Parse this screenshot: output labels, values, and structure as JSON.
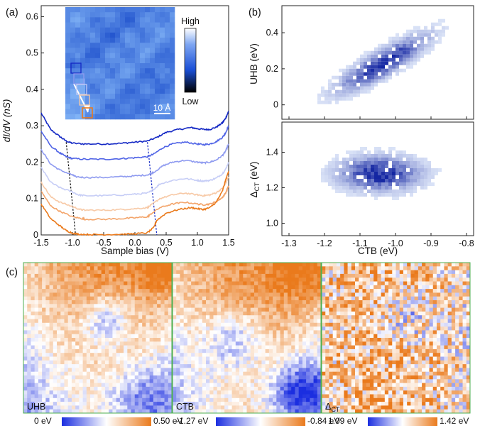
{
  "panels": {
    "a": "(a)",
    "b": "(b)",
    "c": "(c)"
  },
  "colors": {
    "blue_dark": "#1327c4",
    "blue_mid": "#5c6ff2",
    "blue_light": "#b9c2f6",
    "orange_light": "#f7c6a2",
    "orange_mid": "#f2a064",
    "orange_dark": "#ea7a1c",
    "map_green_frame": "#4caf50",
    "stm_blue": "#2b6fe3"
  },
  "chart_data": [
    {
      "id": "a",
      "type": "line",
      "xlabel": "Sample bias (V)",
      "ylabel": "dI/dV (nS)",
      "xlim": [
        -1.5,
        1.5
      ],
      "ylim": [
        0,
        0.63
      ],
      "xticks": [
        "-1.5",
        "-1.0",
        "-0.5",
        "0.0",
        "0.5",
        "1.0",
        "1.5"
      ],
      "yticks": [
        "0",
        "0.1",
        "0.2",
        "0.3",
        "0.4",
        "0.5",
        "0.6"
      ],
      "series": [
        {
          "color": "#1327c4",
          "offset": 0.24,
          "x": [
            -1.5,
            -1.35,
            -1.2,
            -1.1,
            -1.0,
            -0.8,
            -0.5,
            -0.2,
            0.0,
            0.2,
            0.35,
            0.5,
            0.7,
            0.9,
            1.0,
            1.1,
            1.2,
            1.3,
            1.4,
            1.45,
            1.5
          ],
          "y": [
            0.095,
            0.05,
            0.03,
            0.018,
            0.012,
            0.01,
            0.01,
            0.012,
            0.015,
            0.018,
            0.028,
            0.042,
            0.05,
            0.055,
            0.052,
            0.05,
            0.05,
            0.056,
            0.068,
            0.08,
            0.1
          ]
        },
        {
          "color": "#4f63e6",
          "offset": 0.2,
          "x": [
            -1.5,
            -1.35,
            -1.2,
            -1.1,
            -1.0,
            -0.8,
            -0.5,
            -0.2,
            0.0,
            0.2,
            0.3,
            0.45,
            0.6,
            0.8,
            1.0,
            1.1,
            1.2,
            1.3,
            1.4,
            1.45,
            1.5
          ],
          "y": [
            0.085,
            0.045,
            0.025,
            0.015,
            0.01,
            0.008,
            0.008,
            0.01,
            0.012,
            0.015,
            0.022,
            0.04,
            0.05,
            0.055,
            0.05,
            0.048,
            0.05,
            0.056,
            0.068,
            0.08,
            0.1
          ]
        },
        {
          "color": "#8f9bf0",
          "offset": 0.15,
          "x": [
            -1.5,
            -1.35,
            -1.2,
            -1.0,
            -0.95,
            -0.8,
            -0.5,
            -0.2,
            0.0,
            0.2,
            0.3,
            0.45,
            0.6,
            0.8,
            1.0,
            1.1,
            1.2,
            1.3,
            1.4,
            1.45,
            1.5
          ],
          "y": [
            0.085,
            0.045,
            0.028,
            0.015,
            0.01,
            0.008,
            0.008,
            0.01,
            0.012,
            0.015,
            0.022,
            0.04,
            0.05,
            0.055,
            0.05,
            0.048,
            0.05,
            0.056,
            0.068,
            0.08,
            0.1
          ]
        },
        {
          "color": "#c6cdf6",
          "offset": 0.1,
          "x": [
            -1.5,
            -1.35,
            -1.2,
            -1.0,
            -0.9,
            -0.8,
            -0.5,
            -0.2,
            0.0,
            0.2,
            0.28,
            0.4,
            0.6,
            0.8,
            1.0,
            1.1,
            1.2,
            1.3,
            1.4,
            1.45,
            1.5
          ],
          "y": [
            0.085,
            0.045,
            0.03,
            0.018,
            0.01,
            0.008,
            0.008,
            0.01,
            0.012,
            0.015,
            0.022,
            0.04,
            0.05,
            0.055,
            0.05,
            0.048,
            0.05,
            0.056,
            0.068,
            0.08,
            0.1
          ]
        },
        {
          "color": "#f7c9a6",
          "offset": 0.06,
          "x": [
            -1.5,
            -1.35,
            -1.2,
            -1.0,
            -0.88,
            -0.8,
            -0.5,
            -0.2,
            0.0,
            0.2,
            0.26,
            0.4,
            0.6,
            0.8,
            1.0,
            1.1,
            1.2,
            1.3,
            1.4,
            1.45,
            1.5
          ],
          "y": [
            0.085,
            0.045,
            0.03,
            0.018,
            0.01,
            0.008,
            0.008,
            0.01,
            0.012,
            0.015,
            0.022,
            0.04,
            0.05,
            0.055,
            0.05,
            0.048,
            0.05,
            0.056,
            0.068,
            0.08,
            0.1
          ]
        },
        {
          "color": "#f3a46a",
          "offset": 0.035,
          "x": [
            -1.5,
            -1.35,
            -1.2,
            -1.0,
            -0.85,
            -0.8,
            -0.5,
            -0.2,
            0.0,
            0.2,
            0.25,
            0.4,
            0.6,
            0.8,
            1.0,
            1.1,
            1.2,
            1.3,
            1.4,
            1.45,
            1.5
          ],
          "y": [
            0.085,
            0.045,
            0.03,
            0.015,
            0.01,
            0.008,
            0.008,
            0.01,
            0.012,
            0.015,
            0.022,
            0.04,
            0.05,
            0.055,
            0.05,
            0.048,
            0.05,
            0.056,
            0.068,
            0.08,
            0.1
          ]
        },
        {
          "color": "#ea7a1c",
          "offset": 0.0,
          "x": [
            -1.5,
            -1.35,
            -1.2,
            -1.1,
            -1.0,
            -0.9,
            -0.7,
            -0.5,
            -0.2,
            0.0,
            0.2,
            0.3,
            0.35,
            0.5,
            0.7,
            0.9,
            1.0,
            1.1,
            1.2,
            1.3,
            1.4,
            1.45,
            1.5
          ],
          "y": [
            0.085,
            0.045,
            0.025,
            0.012,
            0.005,
            0.002,
            0.001,
            0.001,
            0.002,
            0.003,
            0.006,
            0.02,
            0.04,
            0.06,
            0.07,
            0.075,
            0.072,
            0.07,
            0.075,
            0.09,
            0.12,
            0.15,
            0.175
          ]
        }
      ],
      "guides": [
        {
          "color": "#111111",
          "x": [
            -1.1,
            -0.95
          ],
          "y": [
            0.255,
            0.0
          ]
        },
        {
          "color": "#1327c4",
          "x": [
            0.2,
            0.35
          ],
          "y": [
            0.255,
            0.0
          ]
        }
      ],
      "inset": {
        "colorbar_high": "High",
        "colorbar_low": "Low",
        "scalebar": "10 Å"
      }
    },
    {
      "id": "b-top",
      "type": "heatmap",
      "ylabel": "UHB (eV)",
      "xlim": [
        -1.32,
        -0.78
      ],
      "ylim": [
        -0.08,
        0.55
      ],
      "yticks": [
        "0",
        "0.2",
        "0.4"
      ],
      "center": [
        -1.04,
        0.24
      ]
    },
    {
      "id": "b-bottom",
      "type": "heatmap",
      "xlabel": "CTB (eV)",
      "ylabel": "ΔCT (eV)",
      "xlim": [
        -1.32,
        -0.78
      ],
      "ylim": [
        0.93,
        1.57
      ],
      "xticks": [
        "-1.3",
        "-1.2",
        "-1.1",
        "-1.0",
        "-0.9",
        "-0.8"
      ],
      "yticks": [
        "1.0",
        "1.2",
        "1.4"
      ],
      "center": [
        -1.05,
        1.29
      ]
    },
    {
      "id": "c",
      "type": "heatmap",
      "maps": [
        {
          "label": "UHB",
          "min": "0 eV",
          "max": "0.50 eV"
        },
        {
          "label": "CTB",
          "min": "-1.27 eV",
          "max": "-0.84 eV"
        },
        {
          "label": "ΔCT",
          "min": "1.09 eV",
          "max": "1.42 eV"
        }
      ]
    }
  ]
}
